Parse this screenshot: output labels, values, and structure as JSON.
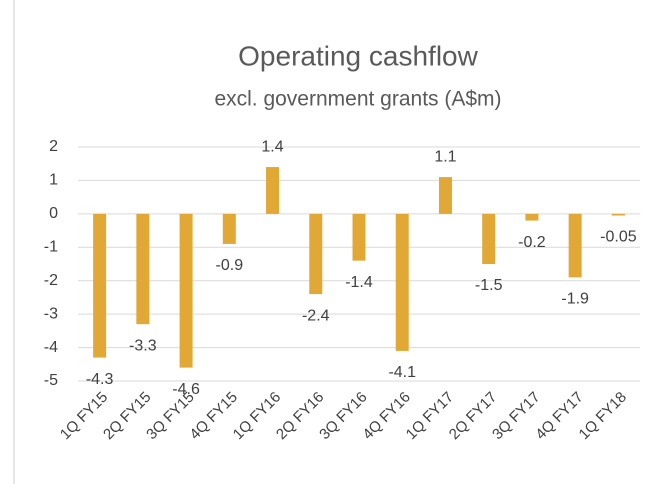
{
  "chart_data": {
    "type": "bar",
    "title": "Operating cashflow",
    "subtitle": "excl. government grants (A$m)",
    "categories": [
      "1Q FY15",
      "2Q FY15",
      "3Q FY15",
      "4Q FY15",
      "1Q FY16",
      "2Q FY16",
      "3Q FY16",
      "4Q FY16",
      "1Q FY17",
      "2Q FY17",
      "3Q FY17",
      "4Q FY17",
      "1Q FY18"
    ],
    "values": [
      -4.3,
      -3.3,
      -4.6,
      -0.9,
      1.4,
      -2.4,
      -1.4,
      -4.1,
      1.1,
      -1.5,
      -0.2,
      -1.9,
      -0.05
    ],
    "color": "#e2a836",
    "ylim": [
      -5,
      2
    ],
    "yticks": [
      -5,
      -4,
      -3,
      -2,
      -1,
      0,
      1,
      2
    ],
    "grid": true
  }
}
